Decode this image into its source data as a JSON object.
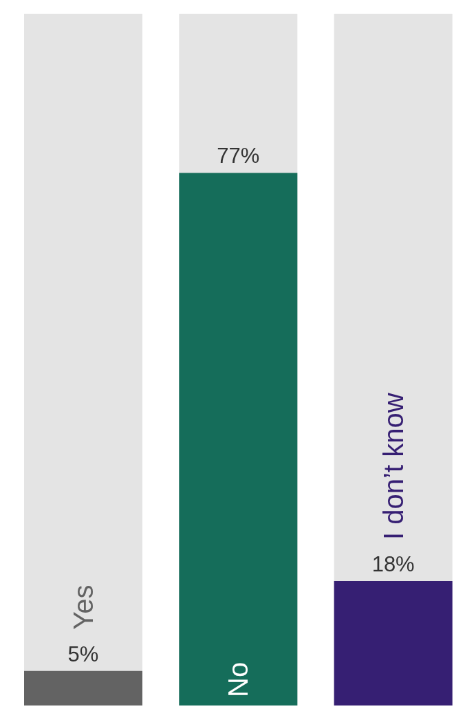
{
  "chart_data": {
    "type": "bar",
    "categories": [
      "Yes",
      "No",
      "I don’t know"
    ],
    "values": [
      5,
      77,
      18
    ],
    "colors": [
      "#636363",
      "#156d5a",
      "#361f73"
    ],
    "value_labels": [
      "5%",
      "77%",
      "18%"
    ]
  }
}
